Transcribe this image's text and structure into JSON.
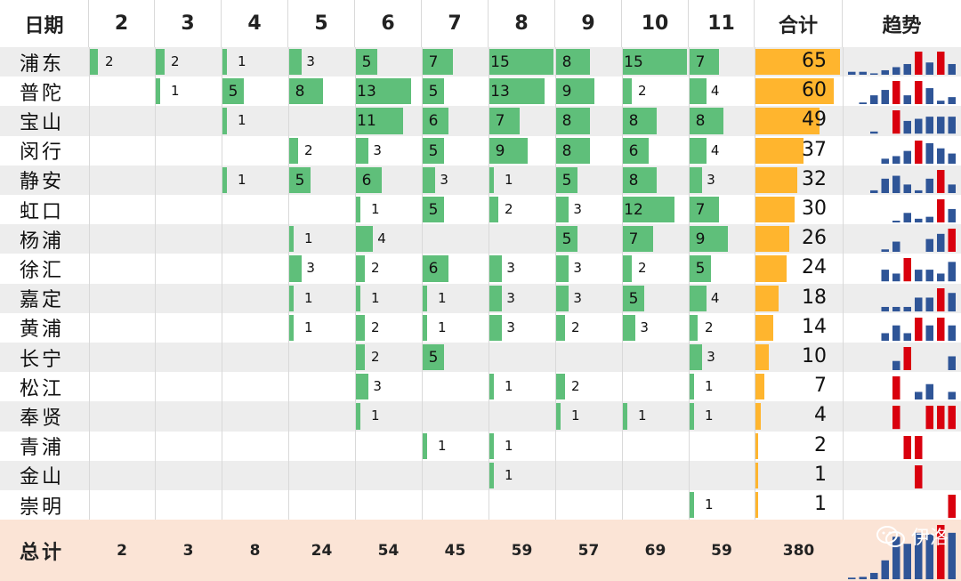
{
  "chart_data": {
    "type": "table",
    "header_label": "日期",
    "dates": [
      "2",
      "3",
      "4",
      "5",
      "6",
      "7",
      "8",
      "9",
      "10",
      "11"
    ],
    "total_header": "合计",
    "trend_header": "趋势",
    "rows": [
      {
        "name": "浦东",
        "values": [
          2,
          2,
          1,
          3,
          5,
          7,
          15,
          8,
          15,
          7
        ],
        "total": 65
      },
      {
        "name": "普陀",
        "values": [
          null,
          1,
          5,
          8,
          13,
          5,
          13,
          9,
          2,
          4
        ],
        "total": 60
      },
      {
        "name": "宝山",
        "values": [
          null,
          null,
          1,
          null,
          11,
          6,
          7,
          8,
          8,
          8
        ],
        "total": 49
      },
      {
        "name": "闵行",
        "values": [
          null,
          null,
          null,
          2,
          3,
          5,
          9,
          8,
          6,
          4
        ],
        "total": 37
      },
      {
        "name": "静安",
        "values": [
          null,
          null,
          1,
          5,
          6,
          3,
          1,
          5,
          8,
          3
        ],
        "total": 32
      },
      {
        "name": "虹口",
        "values": [
          null,
          null,
          null,
          null,
          1,
          5,
          2,
          3,
          12,
          7
        ],
        "total": 30
      },
      {
        "name": "杨浦",
        "values": [
          null,
          null,
          null,
          1,
          4,
          null,
          null,
          5,
          7,
          9
        ],
        "total": 26
      },
      {
        "name": "徐汇",
        "values": [
          null,
          null,
          null,
          3,
          2,
          6,
          3,
          3,
          2,
          5
        ],
        "total": 24
      },
      {
        "name": "嘉定",
        "values": [
          null,
          null,
          null,
          1,
          1,
          1,
          3,
          3,
          5,
          4
        ],
        "total": 18
      },
      {
        "name": "黄浦",
        "values": [
          null,
          null,
          null,
          1,
          2,
          1,
          3,
          2,
          3,
          2
        ],
        "total": 14
      },
      {
        "name": "长宁",
        "values": [
          null,
          null,
          null,
          null,
          2,
          5,
          null,
          null,
          null,
          3
        ],
        "total": 10
      },
      {
        "name": "松江",
        "values": [
          null,
          null,
          null,
          null,
          3,
          null,
          1,
          2,
          null,
          1
        ],
        "total": 7
      },
      {
        "name": "奉贤",
        "values": [
          null,
          null,
          null,
          null,
          1,
          null,
          null,
          1,
          1,
          1
        ],
        "total": 4
      },
      {
        "name": "青浦",
        "values": [
          null,
          null,
          null,
          null,
          null,
          1,
          1,
          null,
          null,
          null
        ],
        "total": 2
      },
      {
        "name": "金山",
        "values": [
          null,
          null,
          null,
          null,
          null,
          null,
          1,
          null,
          null,
          null
        ],
        "total": 1
      },
      {
        "name": "崇明",
        "values": [
          null,
          null,
          null,
          null,
          null,
          null,
          null,
          null,
          null,
          1
        ],
        "total": 1
      }
    ],
    "footer": {
      "name": "总计",
      "values": [
        2,
        3,
        8,
        24,
        54,
        45,
        59,
        57,
        69,
        59
      ],
      "total": 380
    },
    "colors": {
      "bar": "#5fbf7a",
      "total_bar": "#ffb52e",
      "spark": "#2f5597",
      "spark_high": "#d9000e",
      "stripe": "#ededed",
      "footer_bg": "#fbe4d6"
    }
  },
  "watermark": "伊洛"
}
